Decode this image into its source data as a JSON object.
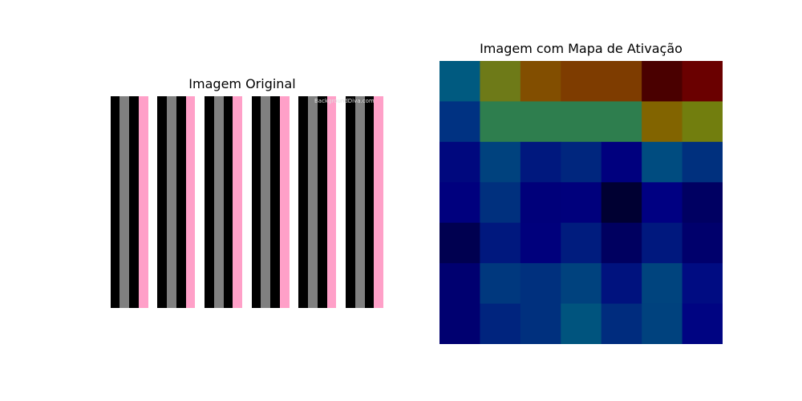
{
  "chart_data": [
    {
      "type": "image",
      "title": "Imagem Original",
      "stripe_pattern": [
        "white",
        "black",
        "gray",
        "black",
        "pink"
      ],
      "stripe_colors": {
        "white": "#ffffff",
        "black": "#000000",
        "gray": "#808080",
        "pink": "#ffa0c8"
      },
      "repeats": 6,
      "watermark": "BackgroundDiva.com"
    },
    {
      "type": "heatmap",
      "title": "Imagem com Mapa de Ativação",
      "rows": 7,
      "cols": 7,
      "cell_colors": [
        [
          "#005a80",
          "#6e7a18",
          "#824e00",
          "#7e3c00",
          "#7e3c00",
          "#4a0000",
          "#6a0000"
        ],
        [
          "#003282",
          "#2e7e4e",
          "#2e7e4e",
          "#2e7e4e",
          "#2e7e4e",
          "#826400",
          "#727e0e"
        ],
        [
          "#00087e",
          "#00427e",
          "#00187e",
          "#00267e",
          "#00007e",
          "#004c80",
          "#00307e"
        ],
        [
          "#00007e",
          "#00307e",
          "#00007a",
          "#00007c",
          "#000032",
          "#000082",
          "#000062"
        ],
        [
          "#000050",
          "#00187e",
          "#00007c",
          "#001c7e",
          "#000060",
          "#00187e",
          "#00006c"
        ],
        [
          "#000070",
          "#00387e",
          "#00307e",
          "#00427e",
          "#00127e",
          "#00447e",
          "#000c82"
        ],
        [
          "#000070",
          "#00247e",
          "#00307e",
          "#00547e",
          "#002c7e",
          "#00427e",
          "#000482"
        ]
      ]
    }
  ]
}
